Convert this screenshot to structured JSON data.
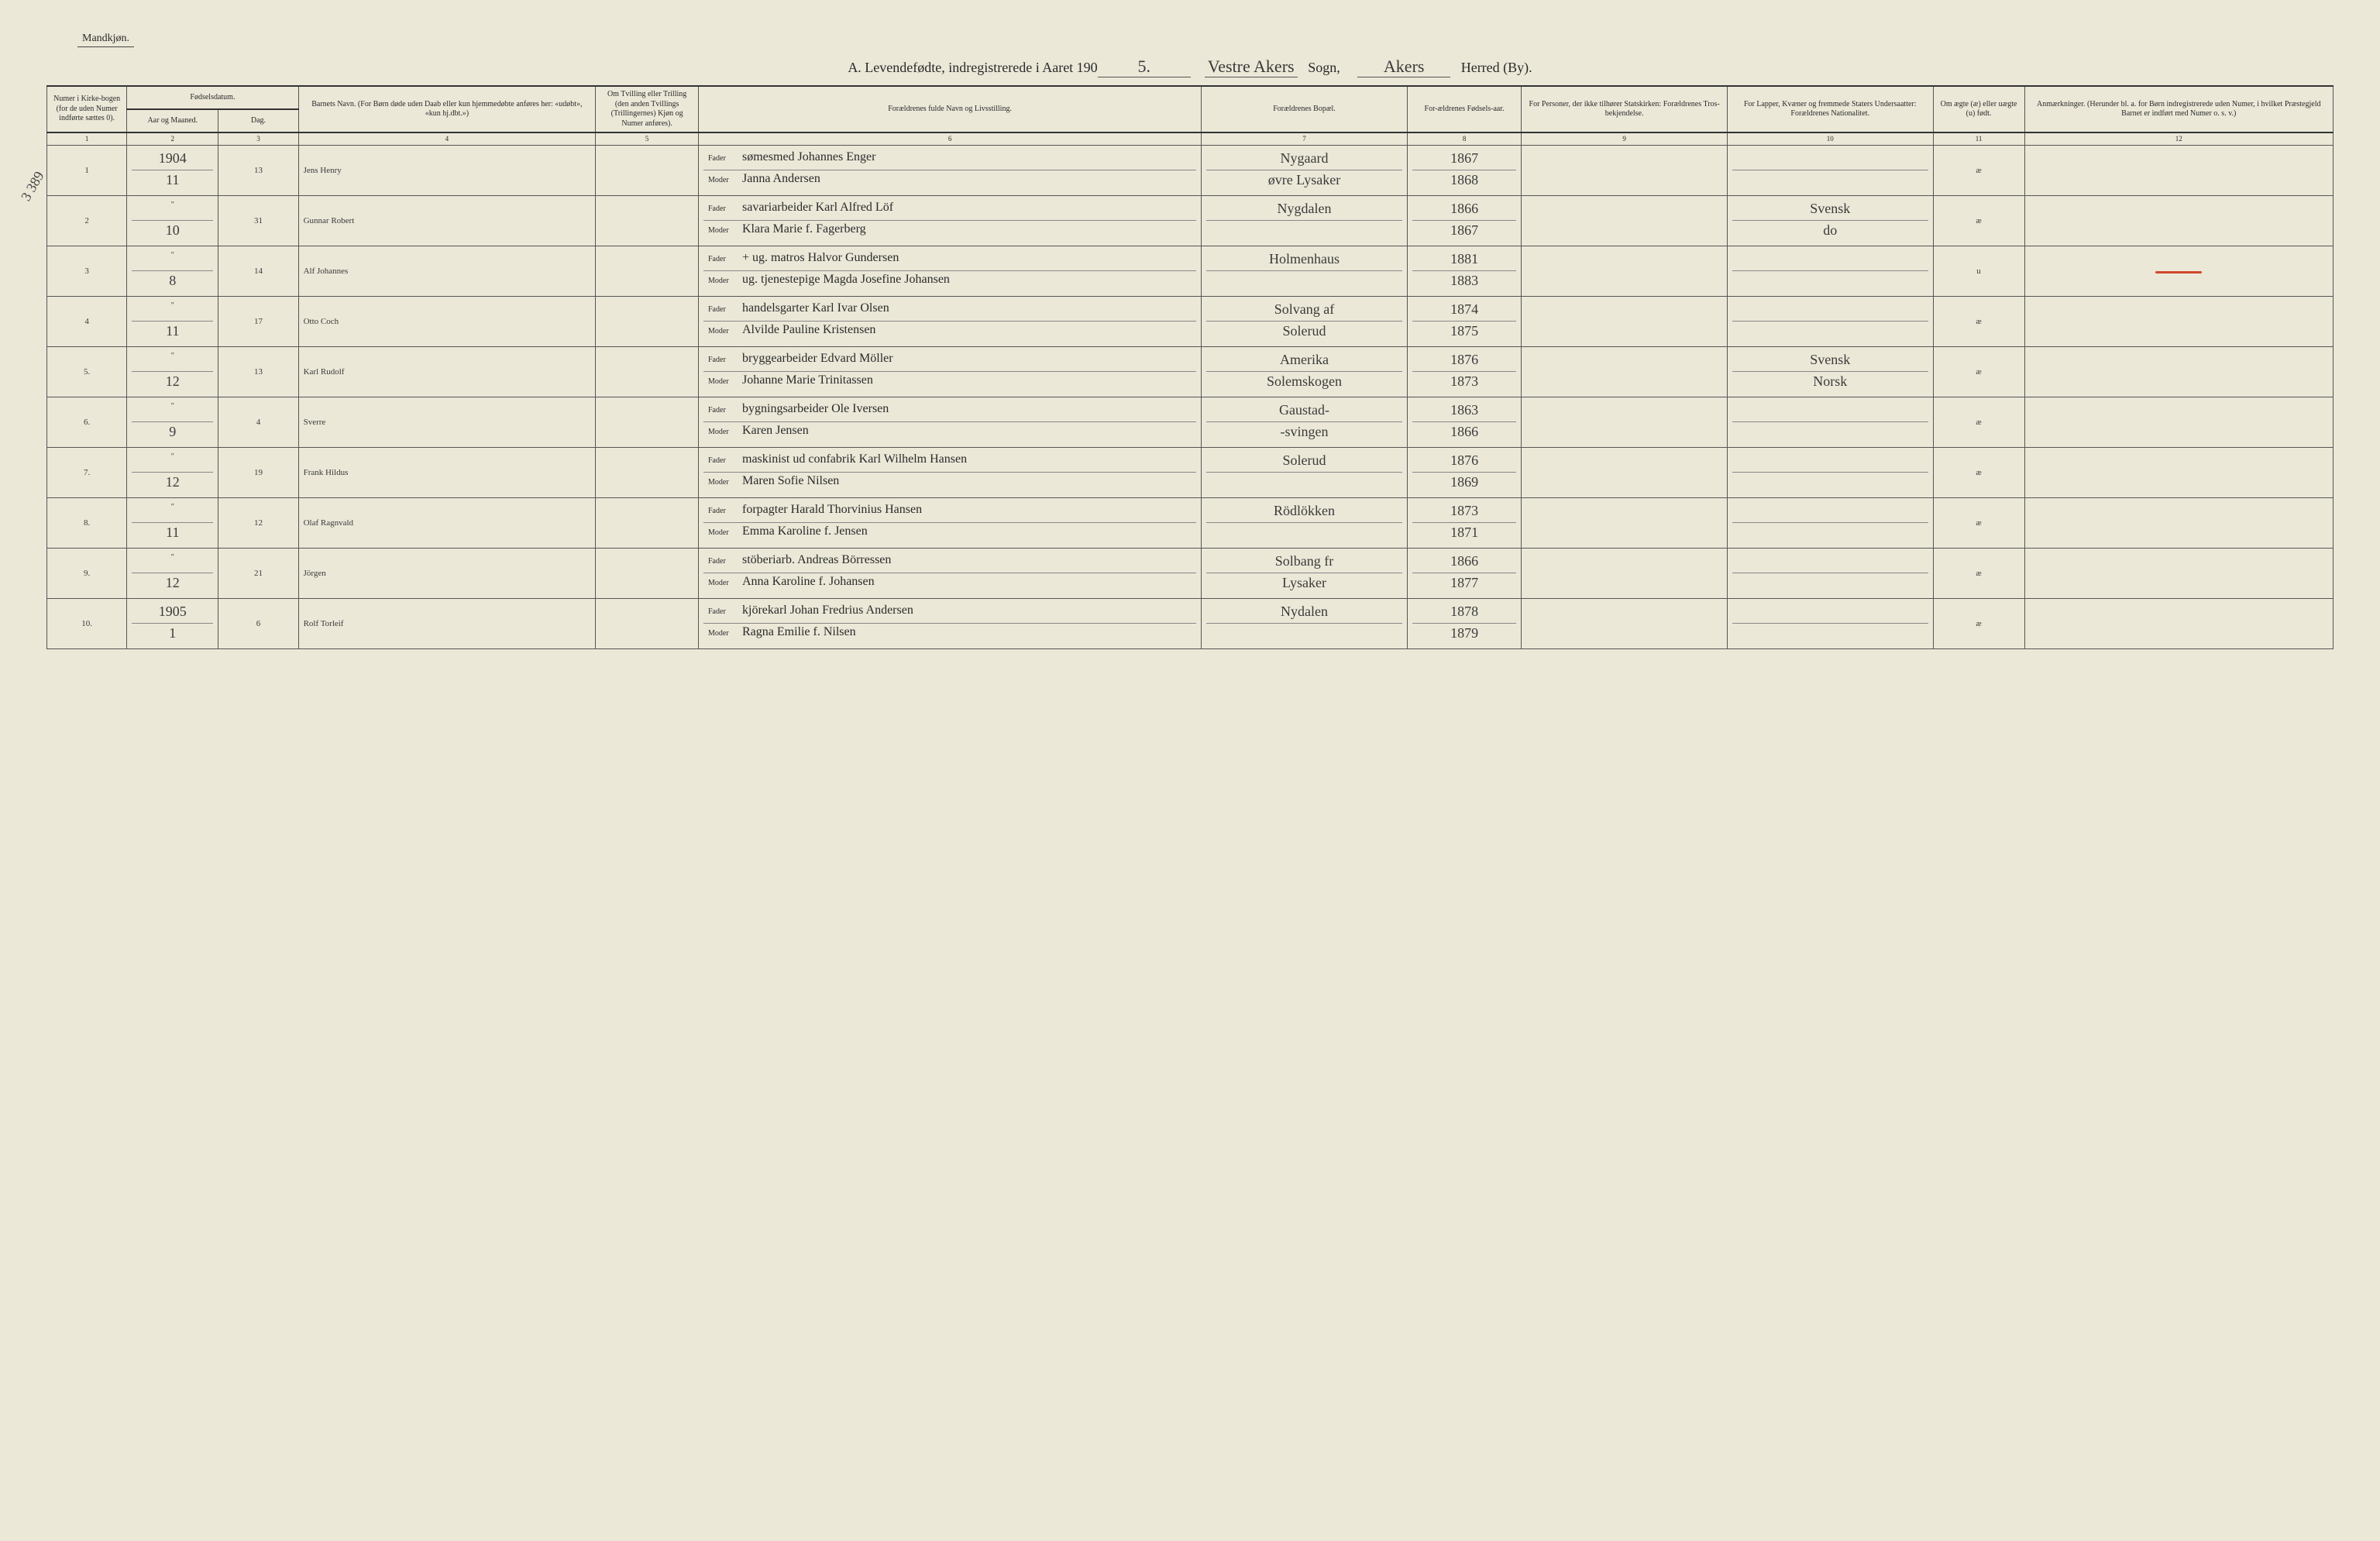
{
  "header": {
    "gender_label": "Mandkjøn.",
    "title_prefix": "A.  Levendefødte, indregistrerede i Aaret 190",
    "year_suffix": "5.",
    "parish_written": "Vestre Akers",
    "parish_label": "Sogn,",
    "district_written": "Akers",
    "district_label": "Herred (By)."
  },
  "side_annotation": "3 389",
  "columns": {
    "c1": "Numer i Kirke-bogen (for de uden Numer indførte sættes 0).",
    "c2a": "Fødselsdatum.",
    "c2": "Aar og Maaned.",
    "c3": "Dag.",
    "c4": "Barnets Navn.\n(For Børn døde uden Daab eller kun hjemmedøbte anføres her: «udøbt», «kun hj.dbt.»)",
    "c5": "Om Tvilling eller Trilling (den anden Tvillings (Trillingernes) Kjøn og Numer anføres).",
    "c6": "Forældrenes fulde Navn og Livsstilling.",
    "c7": "Forældrenes Bopæl.",
    "c8": "For-ældrenes Fødsels-aar.",
    "c9": "For Personer, der ikke tilhører Statskirken: Forældrenes Tros-bekjendelse.",
    "c10": "For Lapper, Kvæner og fremmede Staters Undersaatter: Forældrenes Nationalitet.",
    "c11": "Om ægte (æ) eller uægte (u) født.",
    "c12": "Anmærkninger.\n(Herunder bl. a. for Børn indregistrerede uden Numer, i hvilket Præstegjeld Barnet er indført med Numer o. s. v.)"
  },
  "colnums": [
    "1",
    "2",
    "3",
    "4",
    "5",
    "6",
    "7",
    "8",
    "9",
    "10",
    "11",
    "12"
  ],
  "parent_labels": {
    "father": "Fader",
    "mother": "Moder"
  },
  "top_year": "1904",
  "rows": [
    {
      "num": "1",
      "month": "11",
      "day": "13",
      "name": "Jens Henry",
      "father": "sømesmed Johannes Enger",
      "mother": "Janna Andersen",
      "residence_f": "Nygaard",
      "residence_m": "øvre Lysaker",
      "year_f": "1867",
      "year_m": "1868",
      "nat_f": "",
      "nat_m": "",
      "legit": "æ",
      "remark": ""
    },
    {
      "num": "2",
      "month": "10",
      "day": "31",
      "name": "Gunnar Robert",
      "father": "savariarbeider Karl Alfred Löf",
      "mother": "Klara Marie f. Fagerberg",
      "residence_f": "Nygdalen",
      "residence_m": "",
      "year_f": "1866",
      "year_m": "1867",
      "nat_f": "Svensk",
      "nat_m": "do",
      "legit": "æ",
      "remark": ""
    },
    {
      "num": "3",
      "month": "8",
      "day": "14",
      "name": "Alf Johannes",
      "father": "+ ug. matros Halvor Gundersen",
      "mother": "ug. tjenestepige Magda Josefine Johansen",
      "residence_f": "Holmenhaus",
      "residence_m": "",
      "year_f": "1881",
      "year_m": "1883",
      "nat_f": "",
      "nat_m": "",
      "legit": "u",
      "remark": "—"
    },
    {
      "num": "4",
      "month": "11",
      "day": "17",
      "name": "Otto Coch",
      "father": "handelsgarter Karl Ivar Olsen",
      "mother": "Alvilde Pauline Kristensen",
      "residence_f": "Solvang af",
      "residence_m": "Solerud",
      "year_f": "1874",
      "year_m": "1875",
      "nat_f": "",
      "nat_m": "",
      "legit": "æ",
      "remark": ""
    },
    {
      "num": "5.",
      "month": "12",
      "day": "13",
      "name": "Karl Rudolf",
      "father": "bryggearbeider Edvard Möller",
      "mother": "Johanne Marie Trinitassen",
      "residence_f": "Amerika",
      "residence_m": "Solemskogen",
      "year_f": "1876",
      "year_m": "1873",
      "nat_f": "Svensk",
      "nat_m": "Norsk",
      "legit": "æ",
      "remark": ""
    },
    {
      "num": "6.",
      "month": "9",
      "day": "4",
      "name": "Sverre",
      "father": "bygningsarbeider Ole Iversen",
      "mother": "Karen Jensen",
      "residence_f": "Gaustad-",
      "residence_m": "-svingen",
      "year_f": "1863",
      "year_m": "1866",
      "nat_f": "",
      "nat_m": "",
      "legit": "æ",
      "remark": ""
    },
    {
      "num": "7.",
      "month": "12",
      "day": "19",
      "name": "Frank Hildus",
      "father": "maskinist ud confabrik Karl Wilhelm Hansen",
      "mother": "Maren Sofie Nilsen",
      "residence_f": "Solerud",
      "residence_m": "",
      "year_f": "1876",
      "year_m": "1869",
      "nat_f": "",
      "nat_m": "",
      "legit": "æ",
      "remark": ""
    },
    {
      "num": "8.",
      "month": "11",
      "day": "12",
      "name": "Olaf Ragnvald",
      "father": "forpagter Harald Thorvinius Hansen",
      "mother": "Emma Karoline f. Jensen",
      "residence_f": "Rödlökken",
      "residence_m": "",
      "year_f": "1873",
      "year_m": "1871",
      "nat_f": "",
      "nat_m": "",
      "legit": "æ",
      "remark": ""
    },
    {
      "num": "9.",
      "month": "12",
      "day": "21",
      "name": "Jörgen",
      "father": "stöberiarb. Andreas Börressen",
      "mother": "Anna Karoline f. Johansen",
      "residence_f": "Solbang fr",
      "residence_m": "Lysaker",
      "year_f": "1866",
      "year_m": "1877",
      "nat_f": "",
      "nat_m": "",
      "legit": "æ",
      "remark": ""
    },
    {
      "num": "10.",
      "month": "1",
      "month_year": "1905",
      "day": "6",
      "name": "Rolf Torleif",
      "father": "kjörekarl Johan Fredrius Andersen",
      "mother": "Ragna Emilie f. Nilsen",
      "residence_f": "Nydalen",
      "residence_m": "",
      "year_f": "1878",
      "year_m": "1879",
      "nat_f": "",
      "nat_m": "",
      "legit": "æ",
      "remark": ""
    }
  ]
}
